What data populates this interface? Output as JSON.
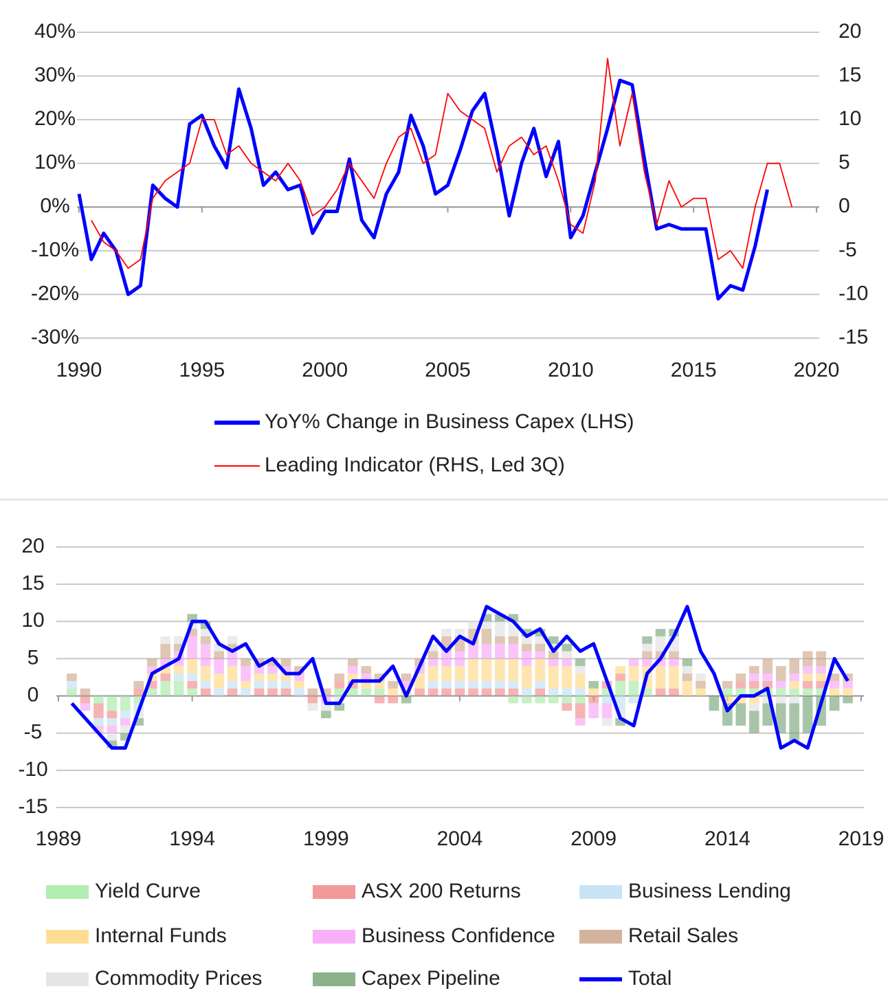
{
  "chart_data": [
    {
      "type": "line",
      "x": [
        1990,
        1990.5,
        1991,
        1991.5,
        1992,
        1992.5,
        1993,
        1993.5,
        1994,
        1994.5,
        1995,
        1995.5,
        1996,
        1996.5,
        1997,
        1997.5,
        1998,
        1998.5,
        1999,
        1999.5,
        2000,
        2000.5,
        2001,
        2001.5,
        2002,
        2002.5,
        2003,
        2003.5,
        2004,
        2004.5,
        2005,
        2005.5,
        2006,
        2006.5,
        2007,
        2007.5,
        2008,
        2008.5,
        2009,
        2009.5,
        2010,
        2010.5,
        2011,
        2011.5,
        2012,
        2012.5,
        2013,
        2013.5,
        2014,
        2014.5,
        2015,
        2015.5,
        2016,
        2016.5,
        2017,
        2017.5,
        2018,
        2018.5,
        2019
      ],
      "xlim": [
        1990,
        2020
      ],
      "xticks": [
        1990,
        1995,
        2000,
        2005,
        2010,
        2015,
        2020
      ],
      "ylim": [
        -30,
        40
      ],
      "yticks": [
        {
          "value": -30,
          "label": "-30%"
        },
        {
          "value": -20,
          "label": "-20%"
        },
        {
          "value": -10,
          "label": "-10%"
        },
        {
          "value": 0,
          "label": "0%"
        },
        {
          "value": 10,
          "label": "10%"
        },
        {
          "value": 20,
          "label": "20%"
        },
        {
          "value": 30,
          "label": "30%"
        },
        {
          "value": 40,
          "label": "40%"
        }
      ],
      "y2lim": [
        -15,
        20
      ],
      "y2ticks": [
        -15,
        -10,
        -5,
        0,
        5,
        10,
        15,
        20
      ],
      "grid": true,
      "legend": "bottom",
      "series": [
        {
          "name": "YoY% Change in Business Capex (LHS)",
          "color": "#0000ff",
          "axis": "y",
          "values": [
            3,
            -12,
            -6,
            -10,
            -20,
            -18,
            5,
            2,
            0,
            19,
            21,
            14,
            9,
            27,
            18,
            5,
            8,
            4,
            5,
            -6,
            -1,
            -1,
            11,
            -3,
            -7,
            3,
            8,
            21,
            14,
            3,
            5,
            13,
            22,
            26,
            13,
            -2,
            10,
            18,
            7,
            15,
            -7,
            -2,
            8,
            18,
            29,
            28,
            11,
            -5,
            -4,
            -5,
            -5,
            -5,
            -21,
            -18,
            -19,
            -9,
            4,
            null,
            null
          ]
        },
        {
          "name": "Leading Indicator (RHS, Led 3Q)",
          "color": "#ff0000",
          "axis": "y2",
          "values": [
            null,
            -1.5,
            -4,
            -5,
            -7,
            -6,
            1,
            3,
            4,
            5,
            10,
            10,
            6,
            7,
            5,
            4,
            3,
            5,
            3,
            -1,
            0,
            2,
            5,
            3,
            1,
            5,
            8,
            9,
            5,
            6,
            13,
            11,
            10,
            9,
            4,
            7,
            8,
            6,
            7,
            3,
            -2,
            -3,
            3,
            17,
            7,
            13,
            4,
            -2,
            3,
            0,
            1,
            1,
            -6,
            -5,
            -7,
            0,
            5,
            5,
            0
          ]
        }
      ]
    },
    {
      "type": "bar",
      "stacked": true,
      "x": [
        1989.5,
        1990,
        1990.5,
        1991,
        1991.5,
        1992,
        1992.5,
        1993,
        1993.5,
        1994,
        1994.5,
        1995,
        1995.5,
        1996,
        1996.5,
        1997,
        1997.5,
        1998,
        1998.5,
        1999,
        1999.5,
        2000,
        2000.5,
        2001,
        2001.5,
        2002,
        2002.5,
        2003,
        2003.5,
        2004,
        2004.5,
        2005,
        2005.5,
        2006,
        2006.5,
        2007,
        2007.5,
        2008,
        2008.5,
        2009,
        2009.5,
        2010,
        2010.5,
        2011,
        2011.5,
        2012,
        2012.5,
        2013,
        2013.5,
        2014,
        2014.5,
        2015,
        2015.5,
        2016,
        2016.5,
        2017,
        2017.5,
        2018,
        2018.5
      ],
      "xlim": [
        1989,
        2019
      ],
      "xticks": [
        1989,
        1994,
        1999,
        2004,
        2009,
        2014,
        2019
      ],
      "ylim": [
        -15,
        20
      ],
      "yticks": [
        -15,
        -10,
        -5,
        0,
        5,
        10,
        15,
        20
      ],
      "grid": true,
      "legend": "bottom",
      "series": [
        {
          "name": "Yield Curve",
          "color": "#9ee89e",
          "values": [
            1,
            0,
            -1,
            -2,
            -2,
            -1,
            1,
            2,
            2,
            1,
            0,
            0,
            0,
            0,
            0,
            0,
            0,
            0,
            0,
            0,
            1,
            1,
            1,
            1,
            0,
            0,
            0,
            0,
            0,
            0,
            0,
            0,
            0,
            -1,
            -1,
            -1,
            -1,
            -1,
            -1,
            0,
            1,
            2,
            2,
            1,
            0,
            0,
            0,
            0,
            0,
            1,
            1,
            1,
            1,
            1,
            1,
            1,
            1,
            0,
            0
          ]
        },
        {
          "name": "ASX 200 Returns",
          "color": "#f08080",
          "values": [
            0,
            -1,
            -2,
            -1,
            0,
            1,
            1,
            1,
            0,
            1,
            1,
            0,
            1,
            0,
            1,
            1,
            1,
            0,
            -1,
            0,
            1,
            1,
            0,
            -1,
            -1,
            0,
            1,
            1,
            1,
            1,
            1,
            1,
            1,
            1,
            0,
            1,
            0,
            -1,
            -2,
            -1,
            1,
            1,
            0,
            0,
            1,
            1,
            0,
            0,
            0,
            0,
            1,
            1,
            1,
            0,
            0,
            1,
            1,
            0,
            0
          ]
        },
        {
          "name": "Business Lending",
          "color": "#bcdcf4",
          "values": [
            1,
            0,
            -1,
            -1,
            -1,
            -1,
            0,
            0,
            1,
            1,
            1,
            1,
            1,
            1,
            1,
            1,
            1,
            1,
            0,
            0,
            0,
            0,
            0,
            0,
            0,
            0,
            0,
            1,
            1,
            1,
            1,
            1,
            1,
            1,
            1,
            1,
            1,
            1,
            1,
            0,
            -1,
            -2,
            -1,
            0,
            0,
            0,
            0,
            0,
            0,
            0,
            0,
            0,
            0,
            0,
            0,
            0,
            0,
            0,
            0
          ]
        },
        {
          "name": "Internal Funds",
          "color": "#ffd47a",
          "values": [
            0,
            0,
            0,
            0,
            0,
            0,
            1,
            1,
            1,
            2,
            2,
            2,
            2,
            1,
            1,
            1,
            1,
            1,
            0,
            0,
            0,
            1,
            1,
            1,
            1,
            1,
            2,
            2,
            2,
            2,
            3,
            3,
            3,
            3,
            3,
            3,
            3,
            3,
            2,
            1,
            0,
            1,
            2,
            3,
            3,
            3,
            2,
            1,
            0,
            -1,
            -1,
            -1,
            0,
            0,
            1,
            1,
            1,
            1,
            1
          ]
        },
        {
          "name": "Business Confidence",
          "color": "#f79cf7",
          "values": [
            0,
            -1,
            -1,
            -1,
            -1,
            0,
            1,
            1,
            2,
            3,
            3,
            2,
            2,
            2,
            1,
            1,
            1,
            1,
            0,
            -1,
            0,
            1,
            1,
            0,
            0,
            1,
            1,
            1,
            2,
            2,
            2,
            2,
            2,
            2,
            2,
            1,
            1,
            1,
            -1,
            -2,
            -2,
            0,
            1,
            1,
            1,
            1,
            0,
            0,
            0,
            0,
            0,
            1,
            1,
            1,
            1,
            1,
            1,
            1,
            1
          ]
        },
        {
          "name": "Retail Sales",
          "color": "#c9a083",
          "values": [
            1,
            1,
            0,
            0,
            0,
            1,
            1,
            2,
            1,
            1,
            1,
            1,
            1,
            1,
            1,
            1,
            1,
            1,
            1,
            1,
            1,
            1,
            1,
            1,
            1,
            1,
            1,
            1,
            2,
            2,
            2,
            2,
            1,
            1,
            1,
            1,
            1,
            0,
            0,
            0,
            0,
            0,
            0,
            1,
            1,
            1,
            1,
            1,
            0,
            1,
            1,
            1,
            2,
            2,
            2,
            2,
            2,
            1,
            1
          ]
        },
        {
          "name": "Commodity Prices",
          "color": "#dedede",
          "values": [
            0,
            0,
            0,
            -1,
            -1,
            -1,
            0,
            1,
            1,
            1,
            1,
            1,
            1,
            0,
            0,
            0,
            0,
            0,
            -1,
            -1,
            -1,
            0,
            0,
            0,
            0,
            0,
            0,
            1,
            1,
            1,
            1,
            1,
            2,
            2,
            1,
            1,
            1,
            1,
            1,
            0,
            -1,
            -1,
            0,
            1,
            2,
            2,
            1,
            1,
            0,
            0,
            0,
            -1,
            -1,
            -1,
            -1,
            0,
            0,
            0,
            0
          ]
        },
        {
          "name": "Capex Pipeline",
          "color": "#6f9f6f",
          "values": [
            0,
            0,
            0,
            -1,
            -1,
            -1,
            0,
            0,
            0,
            1,
            1,
            0,
            0,
            0,
            0,
            0,
            0,
            0,
            0,
            -1,
            -1,
            0,
            0,
            0,
            0,
            -1,
            0,
            0,
            0,
            0,
            0,
            1,
            1,
            1,
            1,
            1,
            1,
            1,
            1,
            1,
            0,
            -1,
            0,
            1,
            1,
            1,
            1,
            0,
            -2,
            -3,
            -3,
            -3,
            -3,
            -4,
            -5,
            -5,
            -4,
            -2,
            -1
          ]
        },
        {
          "name": "Total",
          "color": "#0000ff",
          "type": "line",
          "values": [
            -1,
            -3,
            -5,
            -7,
            -7,
            -2,
            3,
            4,
            5,
            10,
            10,
            7,
            6,
            7,
            4,
            5,
            3,
            3,
            5,
            -1,
            -1,
            2,
            2,
            2,
            4,
            0,
            4,
            8,
            6,
            8,
            7,
            12,
            11,
            10,
            8,
            9,
            6,
            8,
            6,
            7,
            2,
            -3,
            -4,
            3,
            5,
            8,
            12,
            6,
            3,
            -2,
            0,
            0,
            1,
            -7,
            -6,
            -7,
            -1,
            5,
            2
          ]
        }
      ]
    }
  ]
}
